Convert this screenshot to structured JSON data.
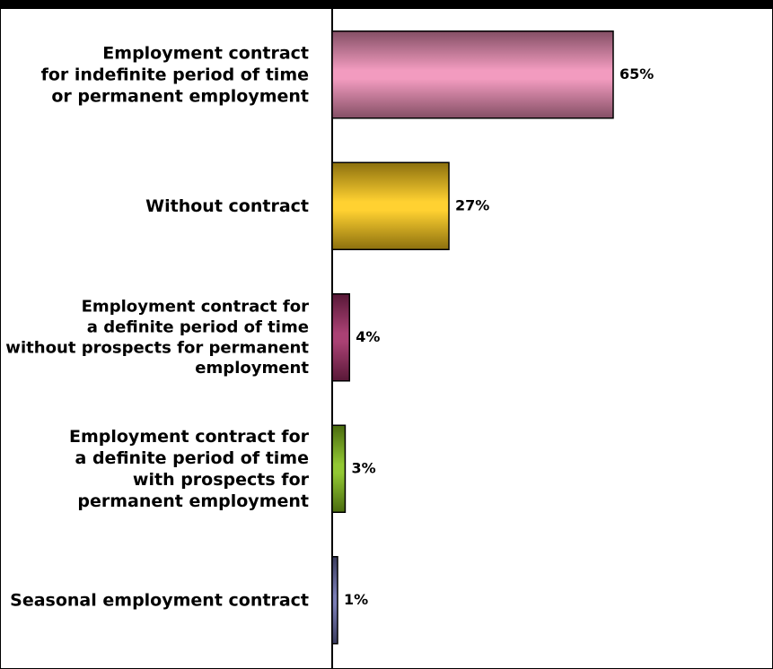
{
  "chart_data": {
    "type": "bar",
    "orientation": "horizontal",
    "categories": [
      "Employment contract\nfor indefinite period of time\nor permanent employment",
      "Without contract",
      "Employment contract for\na definite period of time\nwithout prospects for permanent\nemployment",
      "Employment contract for\na definite period of time\nwith prospects for\npermanent employment",
      "Seasonal employment contract"
    ],
    "values": [
      65,
      27,
      4,
      3,
      1
    ],
    "value_labels": [
      "65%",
      "27%",
      "4%",
      "3%",
      "1%"
    ],
    "unit": "%",
    "colors": [
      "#f090b8",
      "#ffcc1a",
      "#a02c64",
      "#86c21c",
      "#6b6fad"
    ],
    "grid": false,
    "legend": "none"
  }
}
